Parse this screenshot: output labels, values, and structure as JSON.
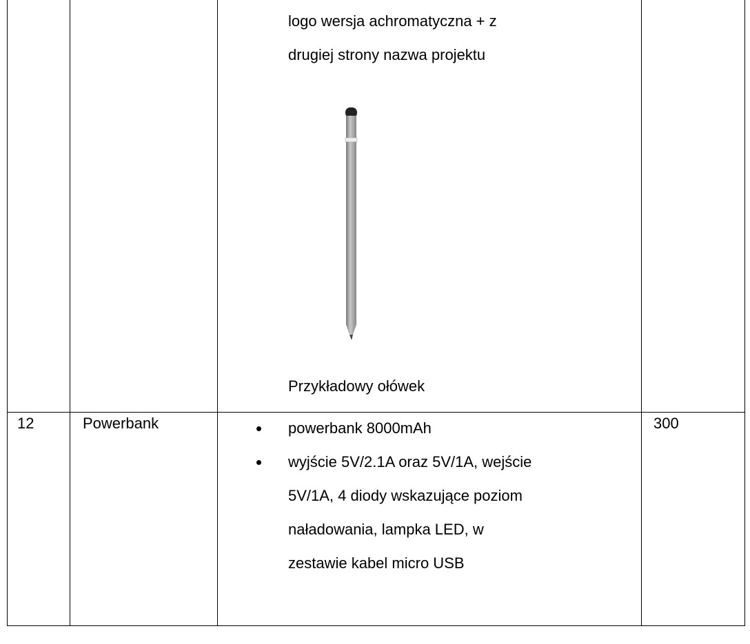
{
  "table": {
    "rows": [
      {
        "description_lines": [
          "logo wersja achromatyczna + z",
          "drugiej strony nazwa projektu"
        ],
        "caption": "Przykładowy ołówek"
      },
      {
        "number": "12",
        "name": "Powerbank",
        "bullets": [
          [
            "powerbank 8000mAh"
          ],
          [
            "wyjście 5V/2.1A oraz 5V/1A, wejście",
            "5V/1A, 4 diody wskazujące poziom",
            "naładowania, lampka LED, w",
            "zestawie kabel micro USB"
          ]
        ],
        "quantity": "300"
      }
    ]
  }
}
